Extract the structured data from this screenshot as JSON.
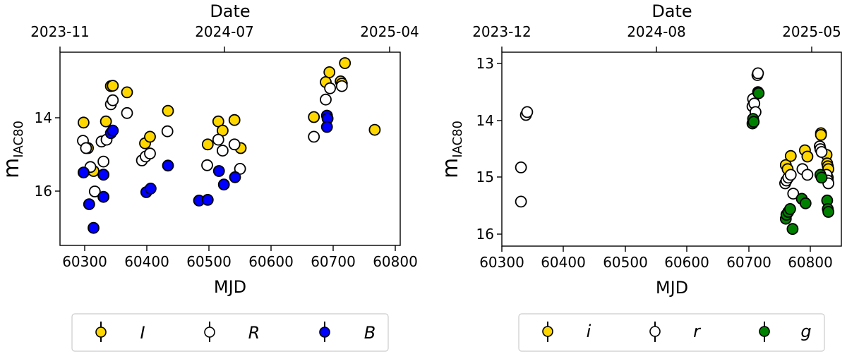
{
  "chart_data": [
    {
      "type": "scatter",
      "title": "",
      "xlabel": "MJD",
      "ylabel": "m_IAC80",
      "top_xlabel": "Date",
      "xlim": [
        60260,
        60808
      ],
      "ylim": [
        17.5,
        12.2
      ],
      "y_inverted": true,
      "x_ticks": [
        60300,
        60400,
        60500,
        60600,
        60700,
        60800
      ],
      "y_ticks": [
        14,
        16
      ],
      "top_ticks": [
        {
          "mjd": 60249,
          "label": "2023-11"
        },
        {
          "mjd": 60492,
          "label": "2024-07"
        },
        {
          "mjd": 60766,
          "label": "2025-04"
        }
      ],
      "grid": false,
      "legend_position": "below",
      "series": [
        {
          "name": "I",
          "color": "#FFD700",
          "points": [
            [
              60298,
              14.13
            ],
            [
              60305,
              14.83
            ],
            [
              60314,
              15.46
            ],
            [
              60334,
              14.1
            ],
            [
              60342,
              13.13
            ],
            [
              60345,
              13.12
            ],
            [
              60368,
              13.3
            ],
            [
              60397,
              14.7
            ],
            [
              60405,
              14.52
            ],
            [
              60434,
              13.81
            ],
            [
              60498,
              14.73
            ],
            [
              60515,
              14.1
            ],
            [
              60522,
              14.35
            ],
            [
              60541,
              14.06
            ],
            [
              60551,
              14.83
            ],
            [
              60669,
              13.98
            ],
            [
              60688,
              13.02
            ],
            [
              60694,
              12.75
            ],
            [
              60712,
              13.0
            ],
            [
              60714,
              13.06
            ],
            [
              60719,
              12.5
            ],
            [
              60767,
              14.33
            ]
          ]
        },
        {
          "name": "R",
          "color": "#FFFFFF",
          "points": [
            [
              60297,
              14.63
            ],
            [
              60302,
              14.83
            ],
            [
              60309,
              15.35
            ],
            [
              60316,
              16.02
            ],
            [
              60330,
              15.2
            ],
            [
              60327,
              14.65
            ],
            [
              60335,
              14.6
            ],
            [
              60342,
              13.63
            ],
            [
              60345,
              13.52
            ],
            [
              60368,
              13.87
            ],
            [
              60392,
              15.17
            ],
            [
              60398,
              15.06
            ],
            [
              60405,
              14.98
            ],
            [
              60433,
              14.37
            ],
            [
              60497,
              15.3
            ],
            [
              60515,
              14.6
            ],
            [
              60522,
              14.9
            ],
            [
              60541,
              14.73
            ],
            [
              60550,
              15.4
            ],
            [
              60669,
              14.52
            ],
            [
              60688,
              13.5
            ],
            [
              60695,
              13.19
            ],
            [
              60714,
              13.13
            ]
          ]
        },
        {
          "name": "B",
          "color": "#0000FF",
          "points": [
            [
              60298,
              15.5
            ],
            [
              60307,
              16.37
            ],
            [
              60314,
              17.02
            ],
            [
              60330,
              15.56
            ],
            [
              60330,
              16.17
            ],
            [
              60342,
              14.42
            ],
            [
              60345,
              14.35
            ],
            [
              60434,
              15.31
            ],
            [
              60399,
              16.04
            ],
            [
              60406,
              15.94
            ],
            [
              60484,
              16.27
            ],
            [
              60498,
              16.25
            ],
            [
              60516,
              15.46
            ],
            [
              60524,
              15.83
            ],
            [
              60542,
              15.63
            ],
            [
              60690,
              13.94
            ],
            [
              60691,
              14.02
            ],
            [
              60690,
              14.25
            ]
          ]
        }
      ]
    },
    {
      "type": "scatter",
      "title": "",
      "xlabel": "MJD",
      "ylabel": "m_IAC80",
      "top_xlabel": "Date",
      "xlim": [
        60300,
        60850
      ],
      "ylim": [
        16.2,
        12.8
      ],
      "y_inverted": true,
      "x_ticks": [
        60300,
        60400,
        60500,
        60600,
        60700,
        60800
      ],
      "y_ticks": [
        13,
        14,
        15,
        16
      ],
      "top_ticks": [
        {
          "mjd": 60279,
          "label": "2023-12"
        },
        {
          "mjd": 60523,
          "label": "2024-08"
        },
        {
          "mjd": 60796,
          "label": "2025-05"
        }
      ],
      "grid": false,
      "legend_position": "below",
      "series": [
        {
          "name": "i",
          "color": "#FFD700",
          "points": [
            [
              60760,
              14.78
            ],
            [
              60763,
              14.85
            ],
            [
              60768,
              14.62
            ],
            [
              60791,
              14.52
            ],
            [
              60795,
              14.63
            ],
            [
              60817,
              14.22
            ],
            [
              60817,
              14.25
            ],
            [
              60826,
              14.6
            ],
            [
              60827,
              14.75
            ],
            [
              60828,
              14.8
            ],
            [
              60829,
              14.85
            ],
            [
              60828,
              15.0
            ]
          ]
        },
        {
          "name": "r",
          "color": "#FFFFFF",
          "points": [
            [
              60331,
              15.42
            ],
            [
              60331,
              14.82
            ],
            [
              60339,
              13.9
            ],
            [
              60341,
              13.85
            ],
            [
              60706,
              13.75
            ],
            [
              60707,
              13.62
            ],
            [
              60709,
              13.7
            ],
            [
              60711,
              13.85
            ],
            [
              60714,
              13.2
            ],
            [
              60715,
              13.17
            ],
            [
              60759,
              15.1
            ],
            [
              60761,
              15.05
            ],
            [
              60764,
              15.0
            ],
            [
              60768,
              14.95
            ],
            [
              60772,
              15.28
            ],
            [
              60787,
              14.85
            ],
            [
              60795,
              14.95
            ],
            [
              60815,
              14.45
            ],
            [
              60816,
              14.5
            ],
            [
              60818,
              14.55
            ],
            [
              60826,
              14.95
            ],
            [
              60828,
              15.05
            ],
            [
              60829,
              15.1
            ]
          ]
        },
        {
          "name": "g",
          "color": "#008000",
          "points": [
            [
              60706,
              14.05
            ],
            [
              60707,
              13.97
            ],
            [
              60708,
              14.02
            ],
            [
              60715,
              13.5
            ],
            [
              60716,
              13.52
            ],
            [
              60760,
              15.72
            ],
            [
              60761,
              15.65
            ],
            [
              60764,
              15.6
            ],
            [
              60767,
              15.55
            ],
            [
              60771,
              15.9
            ],
            [
              60786,
              15.37
            ],
            [
              60792,
              15.45
            ],
            [
              60816,
              14.95
            ],
            [
              60818,
              15.0
            ],
            [
              60827,
              15.4
            ],
            [
              60828,
              15.55
            ],
            [
              60829,
              15.6
            ]
          ]
        }
      ]
    }
  ],
  "panels": [
    {
      "top_label": "Date",
      "top_ticks": [
        "2023-11",
        "2024-07",
        "2025-04"
      ],
      "x_ticks": [
        "60300",
        "60400",
        "60500",
        "60600",
        "60700",
        "60800"
      ],
      "y_ticks": [
        "14",
        "16"
      ],
      "xlabel": "MJD",
      "ylabel_main": "m",
      "ylabel_sub": "IAC80",
      "legend": [
        {
          "label": "I",
          "color": "#FFD700"
        },
        {
          "label": "R",
          "color": "#FFFFFF"
        },
        {
          "label": "B",
          "color": "#0000FF"
        }
      ]
    },
    {
      "top_label": "Date",
      "top_ticks": [
        "2023-12",
        "2024-08",
        "2025-05"
      ],
      "x_ticks": [
        "60300",
        "60400",
        "60500",
        "60600",
        "60700",
        "60800"
      ],
      "y_ticks": [
        "13",
        "14",
        "15",
        "16"
      ],
      "xlabel": "MJD",
      "ylabel_main": "m",
      "ylabel_sub": "IAC80",
      "legend": [
        {
          "label": "i",
          "color": "#FFD700"
        },
        {
          "label": "r",
          "color": "#FFFFFF"
        },
        {
          "label": "g",
          "color": "#008000"
        }
      ]
    }
  ]
}
